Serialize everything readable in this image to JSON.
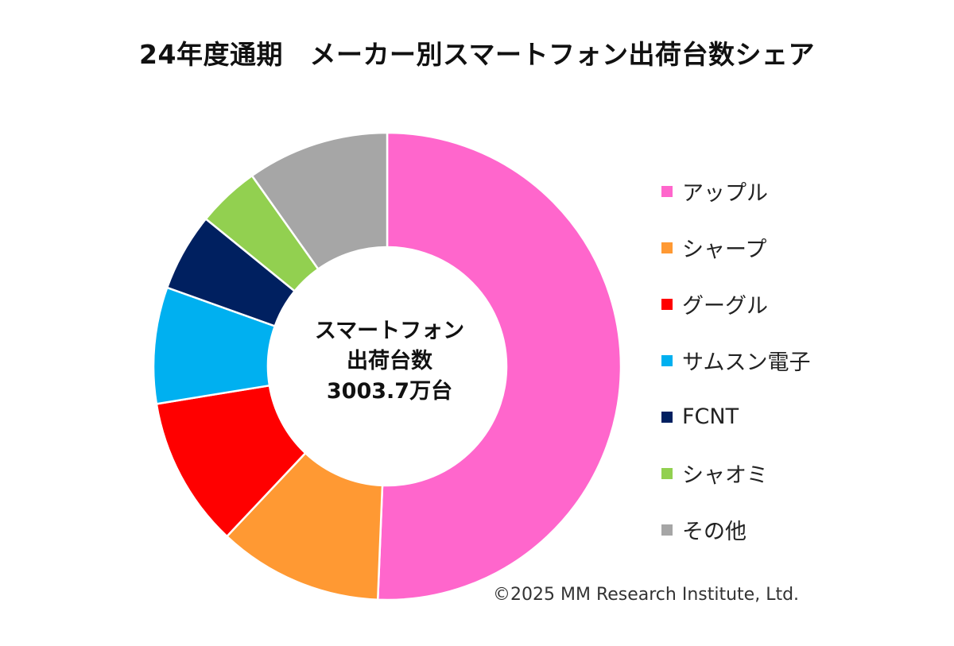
{
  "title": "24年度通期　メーカー別スマートフォン出荷台数シェア",
  "center_label": [
    "スマートフォン",
    "出荷台数",
    "3003.7万台"
  ],
  "credit": "©2025 MM Research Institute, Ltd.",
  "chart_data": {
    "type": "pie",
    "title": "24年度通期　メーカー別スマートフォン出荷台数シェア",
    "unit": "%",
    "legend_position": "right",
    "slices": [
      {
        "name": "アップル",
        "value": 51.6,
        "color": "#ff66cc"
      },
      {
        "name": "シャープ",
        "value": 11.6,
        "color": "#ff9933"
      },
      {
        "name": "グーグル",
        "value": 10.6,
        "color": "#ff0000"
      },
      {
        "name": "サムスン電子",
        "value": 8.2,
        "color": "#00b0f0"
      },
      {
        "name": "FCNT",
        "value": 5.5,
        "color": "#002060"
      },
      {
        "name": "シャオミ",
        "value": 4.4,
        "color": "#92d050"
      },
      {
        "name": "その他",
        "value": 10.0,
        "color": "#a6a6a6"
      }
    ]
  }
}
